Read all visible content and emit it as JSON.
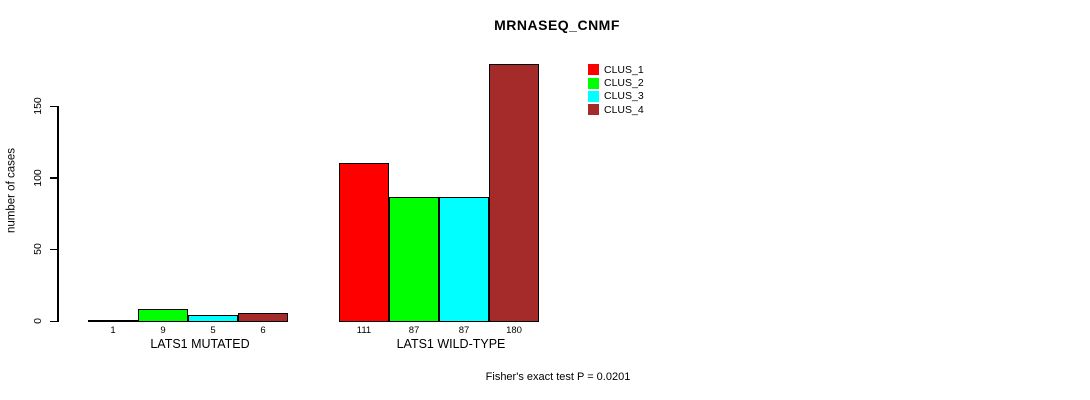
{
  "chart_data": {
    "type": "bar",
    "title": "MRNASEQ_CNMF",
    "ylabel": "number of cases",
    "xlabel": "",
    "yticks": [
      0,
      50,
      100,
      150
    ],
    "ylim": [
      0,
      186
    ],
    "grid": false,
    "legend_position": "top-right",
    "categories": [
      "LATS1 MUTATED",
      "LATS1 WILD-TYPE"
    ],
    "series": [
      {
        "name": "CLUS_1",
        "color": "#FF0000"
      },
      {
        "name": "CLUS_2",
        "color": "#00FF00"
      },
      {
        "name": "CLUS_3",
        "color": "#00FFFF"
      },
      {
        "name": "CLUS_4",
        "color": "#A52A2A"
      }
    ],
    "groups": [
      {
        "label": "LATS1 MUTATED",
        "values": [
          1,
          9,
          5,
          6
        ]
      },
      {
        "label": "LATS1 WILD-TYPE",
        "values": [
          111,
          87,
          87,
          180
        ]
      }
    ],
    "footnote": "Fisher's exact test P = 0.0201"
  }
}
